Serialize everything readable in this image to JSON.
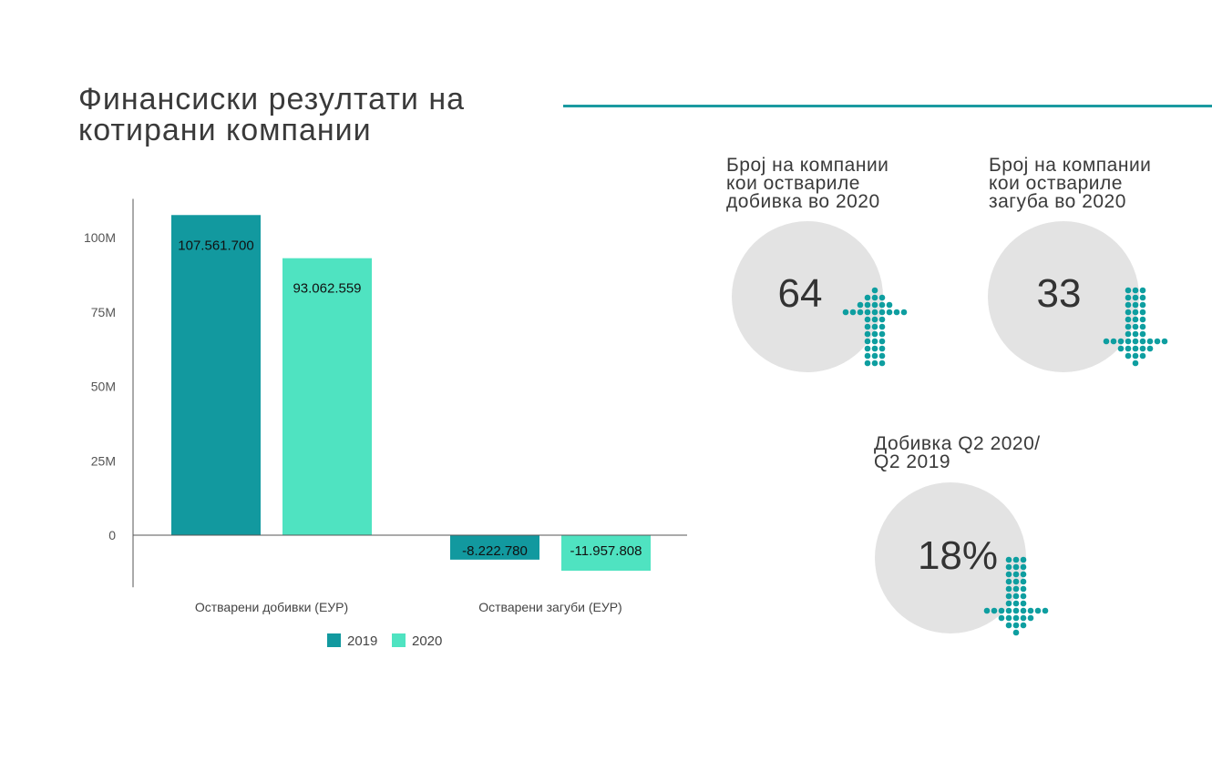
{
  "page": {
    "title": "Финансиски резултати на\nкотирани компании"
  },
  "colors": {
    "accent": "#1a9aa0",
    "series_2019": "#12999f",
    "series_2020": "#4fe3c1",
    "circle_fill": "#e3e3e3",
    "dot_fill": "#0e9ea0"
  },
  "stats": [
    {
      "label": "Број на компании\nкои оствариле\nдобивка во 2020",
      "value": "64",
      "direction": "up"
    },
    {
      "label": "Број на компании\nкои оствариле\nзагуба во 2020",
      "value": "33",
      "direction": "down"
    },
    {
      "label": "Добивка Q2 2020/\nQ2 2019",
      "value": "18%",
      "direction": "down"
    }
  ],
  "chart_data": {
    "type": "bar",
    "title": "Финансиски резултати на котирани компании",
    "categories": [
      "Остварени добивки (ЕУР)",
      "Остварени загуби (ЕУР)"
    ],
    "series": [
      {
        "name": "2019",
        "values": [
          107561700,
          -8222780
        ],
        "labels": [
          "107.561.700",
          "-8.222.780"
        ]
      },
      {
        "name": "2020",
        "values": [
          93062559,
          -11957808
        ],
        "labels": [
          "93.062.559",
          "-11.957.808"
        ]
      }
    ],
    "yticks": [
      0,
      25000000,
      50000000,
      75000000,
      100000000
    ],
    "ytick_labels": [
      "0",
      "25M",
      "50M",
      "75M",
      "100M"
    ],
    "ylim": [
      -17500000,
      113000000
    ],
    "legend": [
      "2019",
      "2020"
    ],
    "legend_position": "bottom",
    "xlabel": "",
    "ylabel": ""
  }
}
